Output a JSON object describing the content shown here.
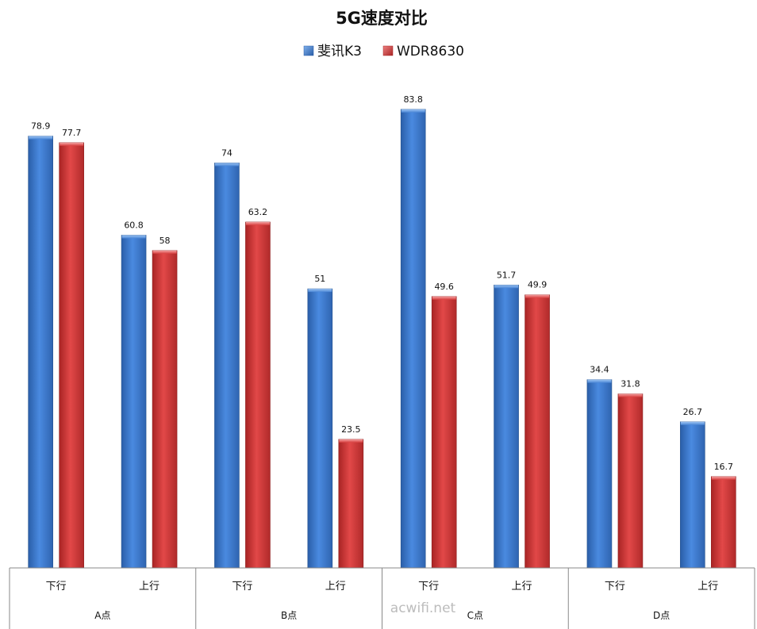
{
  "chart_data": {
    "type": "bar",
    "title": "5G速度对比",
    "xlabel": "",
    "ylabel": "",
    "ylim": [
      0,
      90
    ],
    "grid": false,
    "legend_position": "top",
    "categories": [
      "下行",
      "上行",
      "下行",
      "上行",
      "下行",
      "上行",
      "下行",
      "上行"
    ],
    "groups": [
      "A点",
      "B点",
      "C点",
      "D点"
    ],
    "series": [
      {
        "name": "斐讯K3",
        "color": "#3a78c9",
        "values": [
          78.9,
          60.8,
          74,
          51,
          83.8,
          51.7,
          34.4,
          26.7
        ],
        "labels": [
          "78.9",
          "60.8",
          "74",
          "51",
          "83.8",
          "51.7",
          "34.4",
          "26.7"
        ]
      },
      {
        "name": "WDR8630",
        "color": "#cf3535",
        "values": [
          77.7,
          58,
          63.2,
          23.5,
          49.6,
          49.9,
          31.8,
          16.7
        ],
        "labels": [
          "77.7",
          "58",
          "63.2",
          "23.5",
          "49.6",
          "49.9",
          "31.8",
          "16.7"
        ]
      }
    ]
  },
  "watermark": "acwifi.net"
}
